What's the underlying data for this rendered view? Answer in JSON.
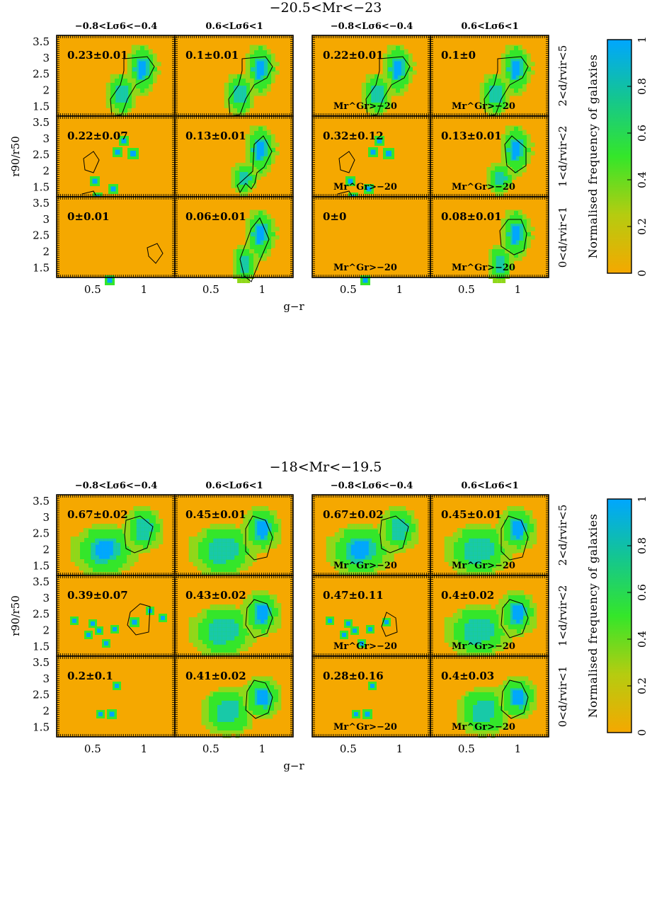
{
  "colors": {
    "background": "#f5a800",
    "low": "#f5a800",
    "mid": "#34e62a",
    "high": "#00a6ff",
    "contour": "#000000"
  },
  "figure": {
    "x_label": "g−r",
    "y_label": "r90/r50",
    "colorbar_label": "Normalised frequency of galaxies",
    "colorbar_ticks": [
      "0",
      "0.2",
      "0.4",
      "0.6",
      "0.8",
      "1"
    ],
    "row_labels": [
      "2<d/rvir<5",
      "1<d/rvir<2",
      "0<d/rvir<1"
    ],
    "column_headers": [
      "−0.8<Lσ6<−0.4",
      "0.6<Lσ6<1",
      "−0.8<Lσ6<−0.4",
      "0.6<Lσ6<1"
    ],
    "gr_note": "Mr^Gr>−20",
    "x_ticks": [
      0.5,
      1
    ],
    "y_ticks": [
      1.5,
      2,
      2.5,
      3,
      3.5
    ]
  },
  "chart_data": [
    {
      "type": "heatmap",
      "title": "−20.5<Mr<−23",
      "xlabel": "g−r",
      "ylabel": "r90/r50",
      "xlim": [
        0.15,
        1.3
      ],
      "ylim": [
        1.2,
        3.7
      ],
      "panels": [
        {
          "row": 0,
          "col": 0,
          "annotation": "0.23±0.01",
          "group_cut": false
        },
        {
          "row": 0,
          "col": 1,
          "annotation": "0.1±0.01",
          "group_cut": false
        },
        {
          "row": 0,
          "col": 2,
          "annotation": "0.22±0.01",
          "group_cut": true
        },
        {
          "row": 0,
          "col": 3,
          "annotation": "0.1±0",
          "group_cut": true
        },
        {
          "row": 1,
          "col": 0,
          "annotation": "0.22±0.07",
          "group_cut": false
        },
        {
          "row": 1,
          "col": 1,
          "annotation": "0.13±0.01",
          "group_cut": false
        },
        {
          "row": 1,
          "col": 2,
          "annotation": "0.32±0.12",
          "group_cut": true
        },
        {
          "row": 1,
          "col": 3,
          "annotation": "0.13±0.01",
          "group_cut": true
        },
        {
          "row": 2,
          "col": 0,
          "annotation": "0±0.01",
          "group_cut": false
        },
        {
          "row": 2,
          "col": 1,
          "annotation": "0.06±0.01",
          "group_cut": false
        },
        {
          "row": 2,
          "col": 2,
          "annotation": "0±0",
          "group_cut": true
        },
        {
          "row": 2,
          "col": 3,
          "annotation": "0.08±0.01",
          "group_cut": true
        }
      ]
    },
    {
      "type": "heatmap",
      "title": "−18<Mr<−19.5",
      "xlabel": "g−r",
      "ylabel": "r90/r50",
      "xlim": [
        0.15,
        1.3
      ],
      "ylim": [
        1.2,
        3.7
      ],
      "panels": [
        {
          "row": 0,
          "col": 0,
          "annotation": "0.67±0.02",
          "group_cut": false
        },
        {
          "row": 0,
          "col": 1,
          "annotation": "0.45±0.01",
          "group_cut": false
        },
        {
          "row": 0,
          "col": 2,
          "annotation": "0.67±0.02",
          "group_cut": true
        },
        {
          "row": 0,
          "col": 3,
          "annotation": "0.45±0.01",
          "group_cut": true
        },
        {
          "row": 1,
          "col": 0,
          "annotation": "0.39±0.07",
          "group_cut": false
        },
        {
          "row": 1,
          "col": 1,
          "annotation": "0.43±0.02",
          "group_cut": false
        },
        {
          "row": 1,
          "col": 2,
          "annotation": "0.47±0.11",
          "group_cut": true
        },
        {
          "row": 1,
          "col": 3,
          "annotation": "0.4±0.02",
          "group_cut": true
        },
        {
          "row": 2,
          "col": 0,
          "annotation": "0.2±0.1",
          "group_cut": false
        },
        {
          "row": 2,
          "col": 1,
          "annotation": "0.41±0.02",
          "group_cut": false
        },
        {
          "row": 2,
          "col": 2,
          "annotation": "0.28±0.16",
          "group_cut": true
        },
        {
          "row": 2,
          "col": 3,
          "annotation": "0.4±0.03",
          "group_cut": true
        }
      ]
    }
  ]
}
